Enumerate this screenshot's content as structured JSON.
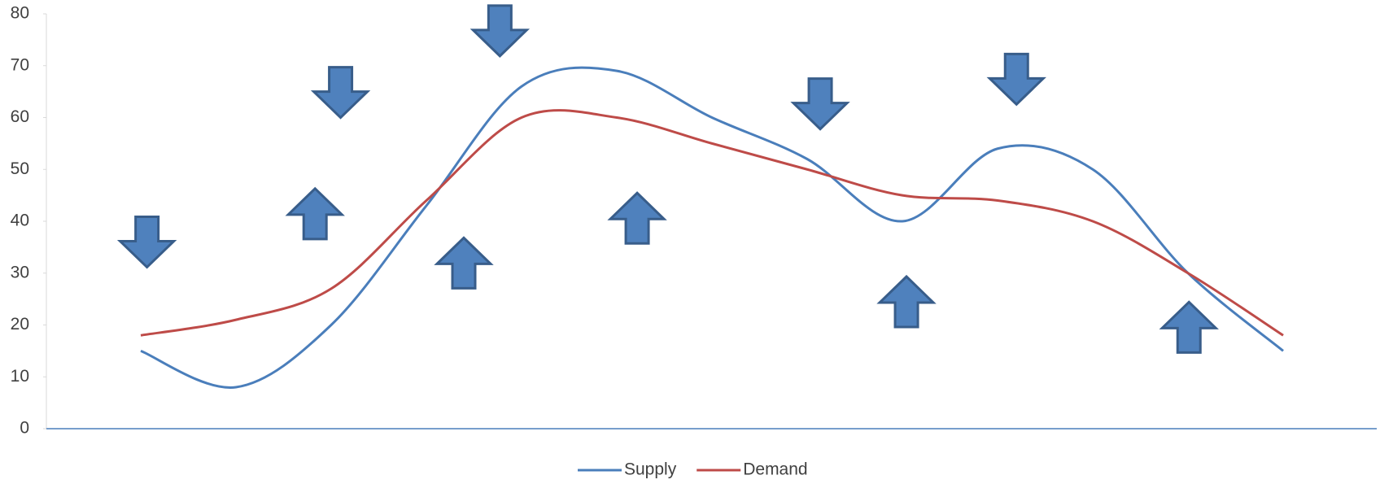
{
  "chart_data": {
    "type": "line",
    "categories": [
      null,
      null,
      null,
      null,
      null,
      null,
      null,
      null,
      null,
      null,
      null,
      null,
      null
    ],
    "series": [
      {
        "name": "Supply",
        "color": "#4a7ebb",
        "values": [
          15,
          8,
          20,
          43,
          66,
          69,
          60,
          52,
          40,
          54,
          50,
          30,
          15
        ]
      },
      {
        "name": "Demand",
        "color": "#be4b48",
        "values": [
          18,
          21,
          27,
          44,
          60,
          60,
          55,
          50,
          45,
          44,
          40,
          30,
          18
        ]
      }
    ],
    "ylim": [
      0,
      80
    ],
    "yticks": [
      0,
      10,
      20,
      30,
      40,
      50,
      60,
      70,
      80
    ],
    "smooth": true,
    "legend": "bottom"
  }
}
